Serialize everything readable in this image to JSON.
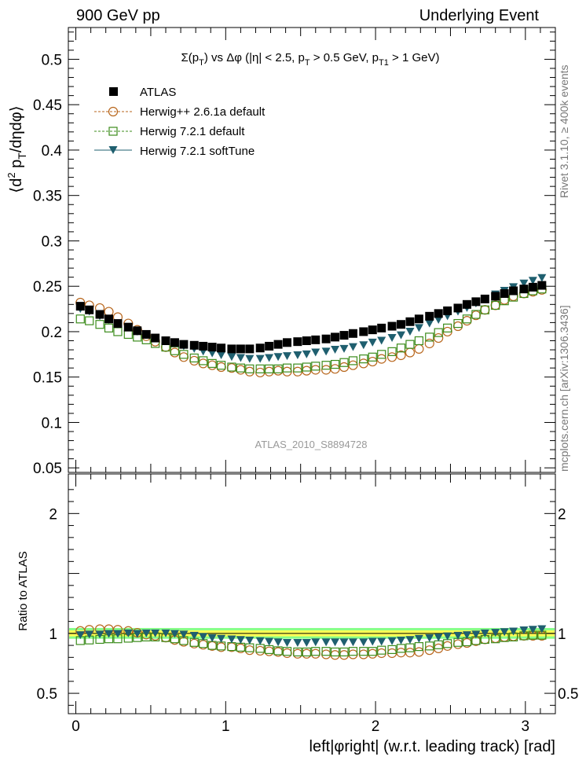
{
  "header": {
    "left": "900 GeV pp",
    "right": "Underlying Event"
  },
  "side_labels": {
    "rivet": "Rivet 3.1.10, ≥ 400k events",
    "mcplots": "mcplots.cern.ch [arXiv:1306.3436]"
  },
  "watermark": "ATLAS_2010_S8894728",
  "colors": {
    "atlas": "#000000",
    "herwigpp": "#b8661c",
    "herwig_default": "#3c8c1c",
    "herwig_soft": "#1f5f6f",
    "band_inner": "#ffff55",
    "band_outer": "#88ff88"
  },
  "chart_data": [
    {
      "type": "scatter",
      "title": "Σ(p_T) vs Δφ (|η| < 2.5, p_T > 0.5 GeV, p_T1 > 1 GeV)",
      "ylabel": "⟨d² p_T/dηdφ⟩",
      "ylim": [
        0.045,
        0.535
      ],
      "xlim": [
        -0.05,
        3.2
      ],
      "yticks": [
        "0.05",
        "0.1",
        "0.15",
        "0.2",
        "0.25",
        "0.3",
        "0.35",
        "0.4",
        "0.45",
        "0.5"
      ],
      "legend_position": "top-left",
      "x": [
        0.03,
        0.09,
        0.16,
        0.22,
        0.28,
        0.35,
        0.41,
        0.47,
        0.53,
        0.6,
        0.66,
        0.72,
        0.79,
        0.85,
        0.91,
        0.97,
        1.04,
        1.1,
        1.16,
        1.23,
        1.29,
        1.35,
        1.41,
        1.48,
        1.54,
        1.6,
        1.67,
        1.73,
        1.79,
        1.85,
        1.92,
        1.98,
        2.04,
        2.11,
        2.17,
        2.23,
        2.29,
        2.36,
        2.42,
        2.48,
        2.55,
        2.61,
        2.67,
        2.73,
        2.8,
        2.86,
        2.92,
        2.99,
        3.05,
        3.11
      ],
      "series": [
        {
          "name": "ATLAS",
          "marker": "filled-square",
          "colorKey": "atlas",
          "values": [
            0.228,
            0.224,
            0.219,
            0.214,
            0.209,
            0.205,
            0.201,
            0.197,
            0.193,
            0.19,
            0.188,
            0.186,
            0.185,
            0.184,
            0.183,
            0.182,
            0.181,
            0.181,
            0.181,
            0.182,
            0.184,
            0.186,
            0.188,
            0.189,
            0.19,
            0.191,
            0.192,
            0.194,
            0.196,
            0.198,
            0.2,
            0.202,
            0.204,
            0.206,
            0.208,
            0.211,
            0.214,
            0.217,
            0.22,
            0.223,
            0.226,
            0.23,
            0.233,
            0.236,
            0.239,
            0.242,
            0.245,
            0.247,
            0.249,
            0.251
          ]
        },
        {
          "name": "Herwig++ 2.6.1a default",
          "marker": "open-circle",
          "colorKey": "herwigpp",
          "values": [
            0.232,
            0.229,
            0.226,
            0.222,
            0.216,
            0.209,
            0.202,
            0.195,
            0.189,
            0.183,
            0.177,
            0.172,
            0.168,
            0.165,
            0.163,
            0.161,
            0.16,
            0.158,
            0.156,
            0.155,
            0.156,
            0.157,
            0.156,
            0.156,
            0.157,
            0.158,
            0.158,
            0.159,
            0.161,
            0.163,
            0.165,
            0.167,
            0.17,
            0.172,
            0.174,
            0.177,
            0.181,
            0.187,
            0.193,
            0.2,
            0.206,
            0.212,
            0.218,
            0.224,
            0.229,
            0.235,
            0.239,
            0.242,
            0.244,
            0.246
          ]
        },
        {
          "name": "Herwig 7.2.1 default",
          "marker": "open-square",
          "colorKey": "herwig_default",
          "values": [
            0.214,
            0.212,
            0.208,
            0.204,
            0.2,
            0.197,
            0.194,
            0.191,
            0.187,
            0.183,
            0.179,
            0.175,
            0.171,
            0.168,
            0.165,
            0.163,
            0.161,
            0.16,
            0.159,
            0.159,
            0.159,
            0.159,
            0.16,
            0.16,
            0.161,
            0.162,
            0.163,
            0.164,
            0.166,
            0.168,
            0.17,
            0.172,
            0.175,
            0.178,
            0.182,
            0.186,
            0.19,
            0.194,
            0.199,
            0.204,
            0.209,
            0.214,
            0.219,
            0.224,
            0.229,
            0.234,
            0.238,
            0.242,
            0.245,
            0.247
          ]
        },
        {
          "name": "Herwig 7.2.1 softTune",
          "marker": "filled-triangle-down",
          "colorKey": "herwig_soft",
          "values": [
            0.225,
            0.222,
            0.217,
            0.213,
            0.208,
            0.205,
            0.2,
            0.197,
            0.193,
            0.19,
            0.187,
            0.184,
            0.181,
            0.178,
            0.176,
            0.174,
            0.172,
            0.171,
            0.17,
            0.17,
            0.171,
            0.172,
            0.173,
            0.174,
            0.175,
            0.177,
            0.178,
            0.18,
            0.181,
            0.183,
            0.185,
            0.188,
            0.19,
            0.193,
            0.196,
            0.2,
            0.204,
            0.209,
            0.213,
            0.217,
            0.222,
            0.226,
            0.231,
            0.236,
            0.241,
            0.245,
            0.249,
            0.253,
            0.256,
            0.259
          ]
        }
      ]
    },
    {
      "type": "scatter",
      "ylabel": "Ratio to ATLAS",
      "xlabel": "left|φright| (w.r.t. leading track) [rad]",
      "ylim": [
        0.33,
        2.33
      ],
      "xlim": [
        -0.05,
        3.2
      ],
      "xticks": [
        "0",
        "1",
        "2",
        "3"
      ],
      "yticks": [
        "0.5",
        "1",
        "2"
      ],
      "band": {
        "inner": [
          0.975,
          1.025
        ],
        "outer": [
          0.955,
          1.045
        ]
      },
      "series": [
        {
          "name": "Herwig++ 2.6.1a default",
          "values": [
            1.02,
            1.03,
            1.035,
            1.035,
            1.03,
            1.02,
            1.005,
            0.99,
            0.98,
            0.965,
            0.945,
            0.93,
            0.915,
            0.905,
            0.895,
            0.885,
            0.885,
            0.875,
            0.86,
            0.855,
            0.85,
            0.845,
            0.835,
            0.83,
            0.83,
            0.83,
            0.825,
            0.82,
            0.82,
            0.825,
            0.825,
            0.83,
            0.835,
            0.835,
            0.84,
            0.84,
            0.845,
            0.86,
            0.875,
            0.895,
            0.91,
            0.92,
            0.935,
            0.95,
            0.96,
            0.97,
            0.975,
            0.98,
            0.98,
            0.98
          ]
        },
        {
          "name": "Herwig 7.2.1 default",
          "values": [
            0.94,
            0.945,
            0.95,
            0.955,
            0.955,
            0.96,
            0.965,
            0.97,
            0.97,
            0.965,
            0.955,
            0.94,
            0.925,
            0.915,
            0.9,
            0.895,
            0.89,
            0.885,
            0.88,
            0.875,
            0.865,
            0.855,
            0.85,
            0.845,
            0.845,
            0.85,
            0.85,
            0.845,
            0.845,
            0.85,
            0.85,
            0.85,
            0.86,
            0.865,
            0.875,
            0.88,
            0.89,
            0.895,
            0.905,
            0.915,
            0.925,
            0.93,
            0.94,
            0.95,
            0.955,
            0.965,
            0.97,
            0.98,
            0.985,
            0.985
          ]
        },
        {
          "name": "Herwig 7.2.1 softTune",
          "values": [
            0.985,
            0.99,
            0.99,
            0.995,
            0.995,
            1.0,
            0.995,
            1.0,
            1.0,
            1.0,
            0.995,
            0.99,
            0.98,
            0.97,
            0.96,
            0.955,
            0.95,
            0.945,
            0.94,
            0.935,
            0.93,
            0.925,
            0.92,
            0.92,
            0.92,
            0.925,
            0.925,
            0.925,
            0.925,
            0.925,
            0.925,
            0.93,
            0.93,
            0.935,
            0.94,
            0.945,
            0.955,
            0.96,
            0.965,
            0.975,
            0.98,
            0.985,
            0.99,
            1.0,
            1.005,
            1.01,
            1.015,
            1.025,
            1.03,
            1.035
          ]
        }
      ]
    }
  ]
}
